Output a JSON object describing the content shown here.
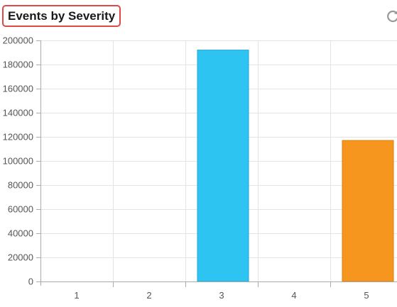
{
  "panel": {
    "title": "Events by Severity",
    "refresh_icon": "refresh-icon"
  },
  "chart_data": {
    "type": "bar",
    "title": "Events by Severity",
    "xlabel": "",
    "ylabel": "",
    "categories": [
      "1",
      "2",
      "3",
      "4",
      "5"
    ],
    "values": [
      0,
      0,
      192000,
      0,
      117000
    ],
    "colors": [
      "#2ec4f2",
      "#2ec4f2",
      "#2ec4f2",
      "#f7961e",
      "#f7961e"
    ],
    "ylim": [
      0,
      200000
    ],
    "yticks": [
      0,
      20000,
      40000,
      60000,
      80000,
      100000,
      120000,
      140000,
      160000,
      180000,
      200000
    ],
    "grid": true,
    "legend": "none"
  }
}
